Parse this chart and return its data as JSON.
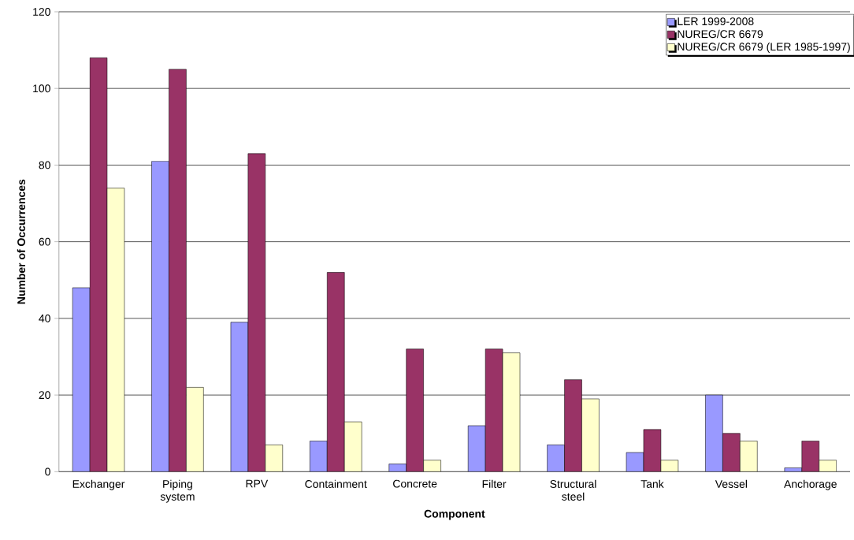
{
  "chart_data": {
    "type": "bar",
    "xlabel": "Component",
    "ylabel": "Number of Occurrences",
    "categories": [
      "Exchanger",
      "Piping system",
      "RPV",
      "Containment",
      "Concrete",
      "Filter",
      "Structural steel",
      "Tank",
      "Vessel",
      "Anchorage"
    ],
    "series": [
      {
        "name": "LER 1999-2008",
        "color": "#9999ff",
        "values": [
          48,
          81,
          39,
          8,
          2,
          12,
          7,
          5,
          20,
          1
        ]
      },
      {
        "name": "NUREG/CR 6679",
        "color": "#993366",
        "values": [
          108,
          105,
          83,
          52,
          32,
          32,
          24,
          11,
          10,
          8
        ]
      },
      {
        "name": "NUREG/CR 6679 (LER 1985-1997)",
        "color": "#ffffcc",
        "values": [
          74,
          22,
          7,
          13,
          3,
          31,
          19,
          3,
          8,
          3
        ]
      }
    ],
    "ylim": [
      0,
      120
    ],
    "yticks": [
      0,
      20,
      40,
      60,
      80,
      100,
      120
    ],
    "grid": "y",
    "legend": "top right"
  }
}
